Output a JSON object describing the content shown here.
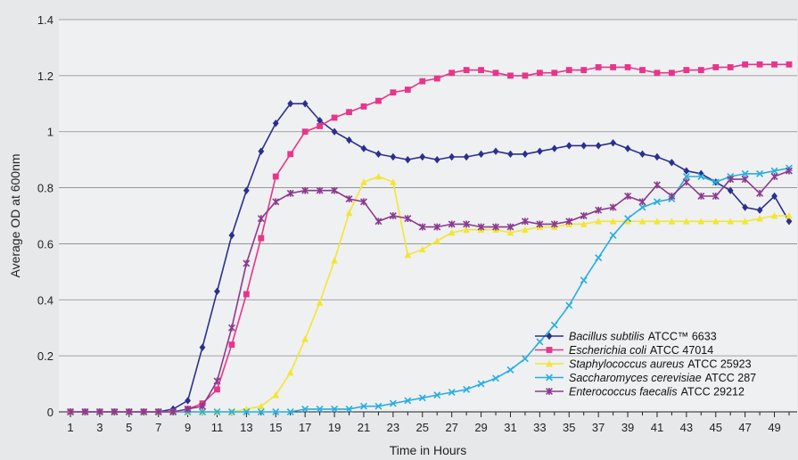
{
  "chart_data": {
    "type": "line",
    "xlabel": "Time in Hours",
    "ylabel": "Average OD at 600nm",
    "xlim": [
      1,
      50
    ],
    "ylim": [
      0,
      1.4
    ],
    "x_ticks": [
      "1",
      "3",
      "5",
      "7",
      "9",
      "11",
      "13",
      "15",
      "17",
      "19",
      "21",
      "23",
      "25",
      "27",
      "29",
      "31",
      "33",
      "35",
      "37",
      "39",
      "41",
      "43",
      "45",
      "47",
      "49"
    ],
    "y_ticks": [
      "0",
      "0.2",
      "0.4",
      "0.6",
      "0.8",
      "1",
      "1.2",
      "1.4"
    ],
    "grid": "horizontal",
    "legend_position": "bottom-right",
    "x": [
      1,
      2,
      3,
      4,
      5,
      6,
      7,
      8,
      9,
      10,
      11,
      12,
      13,
      14,
      15,
      16,
      17,
      18,
      19,
      20,
      21,
      22,
      23,
      24,
      25,
      26,
      27,
      28,
      29,
      30,
      31,
      32,
      33,
      34,
      35,
      36,
      37,
      38,
      39,
      40,
      41,
      42,
      43,
      44,
      45,
      46,
      47,
      48,
      49,
      50
    ],
    "series": [
      {
        "name": "Bacillus subtilis",
        "suffix": "ATCC™ 6633",
        "color": "#2b2f8f",
        "marker": "diamond",
        "values": [
          0,
          0,
          0,
          0,
          0,
          0,
          0,
          0.01,
          0.04,
          0.23,
          0.43,
          0.63,
          0.79,
          0.93,
          1.03,
          1.1,
          1.1,
          1.04,
          1.0,
          0.97,
          0.94,
          0.92,
          0.91,
          0.9,
          0.91,
          0.9,
          0.91,
          0.91,
          0.92,
          0.93,
          0.92,
          0.92,
          0.93,
          0.94,
          0.95,
          0.95,
          0.95,
          0.96,
          0.94,
          0.92,
          0.91,
          0.89,
          0.86,
          0.85,
          0.82,
          0.79,
          0.73,
          0.72,
          0.77,
          0.68
        ]
      },
      {
        "name": "Escherichia coli",
        "suffix": "ATCC 47014",
        "color": "#e8358a",
        "marker": "square",
        "values": [
          0,
          0,
          0,
          0,
          0,
          0,
          0,
          0,
          0.01,
          0.03,
          0.08,
          0.24,
          0.42,
          0.62,
          0.84,
          0.92,
          1.0,
          1.02,
          1.05,
          1.07,
          1.09,
          1.11,
          1.14,
          1.15,
          1.18,
          1.19,
          1.21,
          1.22,
          1.22,
          1.21,
          1.2,
          1.2,
          1.21,
          1.21,
          1.22,
          1.22,
          1.23,
          1.23,
          1.23,
          1.22,
          1.21,
          1.21,
          1.22,
          1.22,
          1.23,
          1.23,
          1.24,
          1.24,
          1.24,
          1.24
        ]
      },
      {
        "name": "Staphylococcus aureus",
        "suffix": "ATCC 25923",
        "color": "#f2e634",
        "marker": "triangle",
        "values": [
          0,
          0,
          0,
          0,
          0,
          0,
          0,
          0,
          0,
          0,
          0,
          0,
          0.01,
          0.02,
          0.06,
          0.14,
          0.26,
          0.39,
          0.54,
          0.71,
          0.82,
          0.84,
          0.82,
          0.56,
          0.58,
          0.61,
          0.64,
          0.65,
          0.65,
          0.65,
          0.64,
          0.65,
          0.66,
          0.66,
          0.67,
          0.67,
          0.68,
          0.68,
          0.68,
          0.68,
          0.68,
          0.68,
          0.68,
          0.68,
          0.68,
          0.68,
          0.68,
          0.69,
          0.7,
          0.7
        ]
      },
      {
        "name": "Saccharomyces cerevisiae",
        "suffix": "ATCC 287",
        "color": "#27aee0",
        "marker": "x",
        "values": [
          0,
          0,
          0,
          0,
          0,
          0,
          0,
          0,
          0,
          0,
          0,
          0,
          0,
          0,
          0,
          0,
          0.01,
          0.01,
          0.01,
          0.01,
          0.02,
          0.02,
          0.03,
          0.04,
          0.05,
          0.06,
          0.07,
          0.08,
          0.1,
          0.12,
          0.15,
          0.19,
          0.25,
          0.31,
          0.38,
          0.47,
          0.55,
          0.63,
          0.69,
          0.73,
          0.75,
          0.76,
          0.84,
          0.84,
          0.82,
          0.84,
          0.85,
          0.85,
          0.86,
          0.87
        ]
      },
      {
        "name": "Enterococcus faecalis",
        "suffix": "ATCC 29212",
        "color": "#8b3a8f",
        "marker": "star",
        "values": [
          0,
          0,
          0,
          0,
          0,
          0,
          0,
          0,
          0.01,
          0.02,
          0.11,
          0.3,
          0.53,
          0.69,
          0.75,
          0.78,
          0.79,
          0.79,
          0.79,
          0.76,
          0.75,
          0.68,
          0.7,
          0.69,
          0.66,
          0.66,
          0.67,
          0.67,
          0.66,
          0.66,
          0.66,
          0.68,
          0.67,
          0.67,
          0.68,
          0.7,
          0.72,
          0.73,
          0.77,
          0.75,
          0.81,
          0.77,
          0.82,
          0.77,
          0.77,
          0.83,
          0.83,
          0.78,
          0.84,
          0.86
        ]
      }
    ]
  }
}
